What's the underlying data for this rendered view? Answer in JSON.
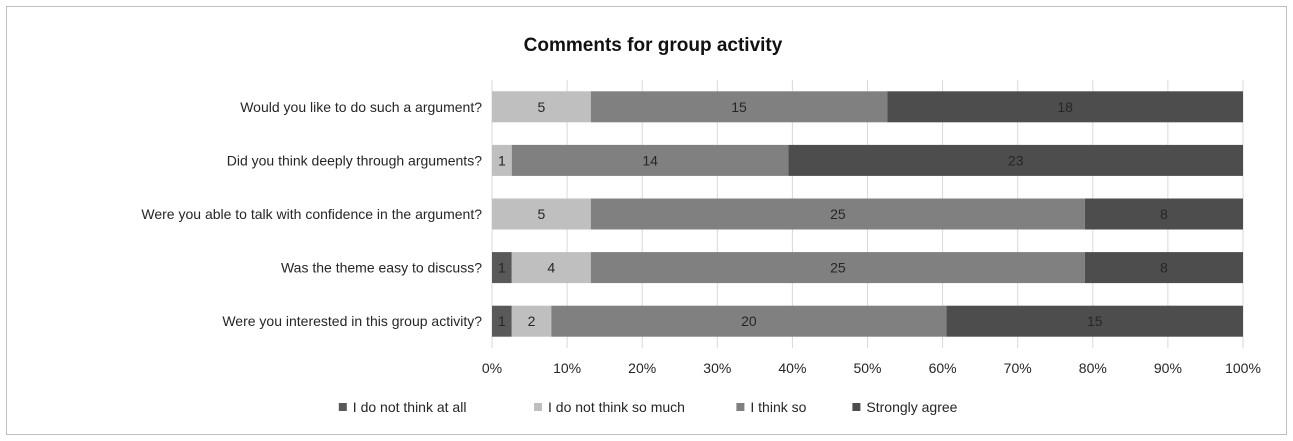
{
  "chart_data": {
    "type": "bar",
    "orientation": "horizontal",
    "stacked": "percent",
    "title": "Comments for group activity",
    "categories": [
      "Would you like to do such a argument?",
      "Did you think deeply through arguments?",
      "Were you able to talk with confidence in the argument?",
      "Was the theme easy to discuss?",
      "Were you interested in this group activity?"
    ],
    "series": [
      {
        "name": "I do not think at all",
        "color": "#595959",
        "values": [
          0,
          0,
          0,
          1,
          1
        ]
      },
      {
        "name": "I do not think so much",
        "color": "#bfbfbf",
        "values": [
          5,
          1,
          5,
          4,
          2
        ]
      },
      {
        "name": "I think so",
        "color": "#808080",
        "values": [
          15,
          14,
          25,
          25,
          20
        ]
      },
      {
        "name": "Strongly agree",
        "color": "#4d4d4d",
        "values": [
          18,
          23,
          8,
          8,
          15
        ]
      }
    ],
    "xlim": [
      0,
      100
    ],
    "x_ticks": [
      "0%",
      "10%",
      "20%",
      "30%",
      "40%",
      "50%",
      "60%",
      "70%",
      "80%",
      "90%",
      "100%"
    ],
    "grid": true,
    "legend_position": "bottom"
  }
}
